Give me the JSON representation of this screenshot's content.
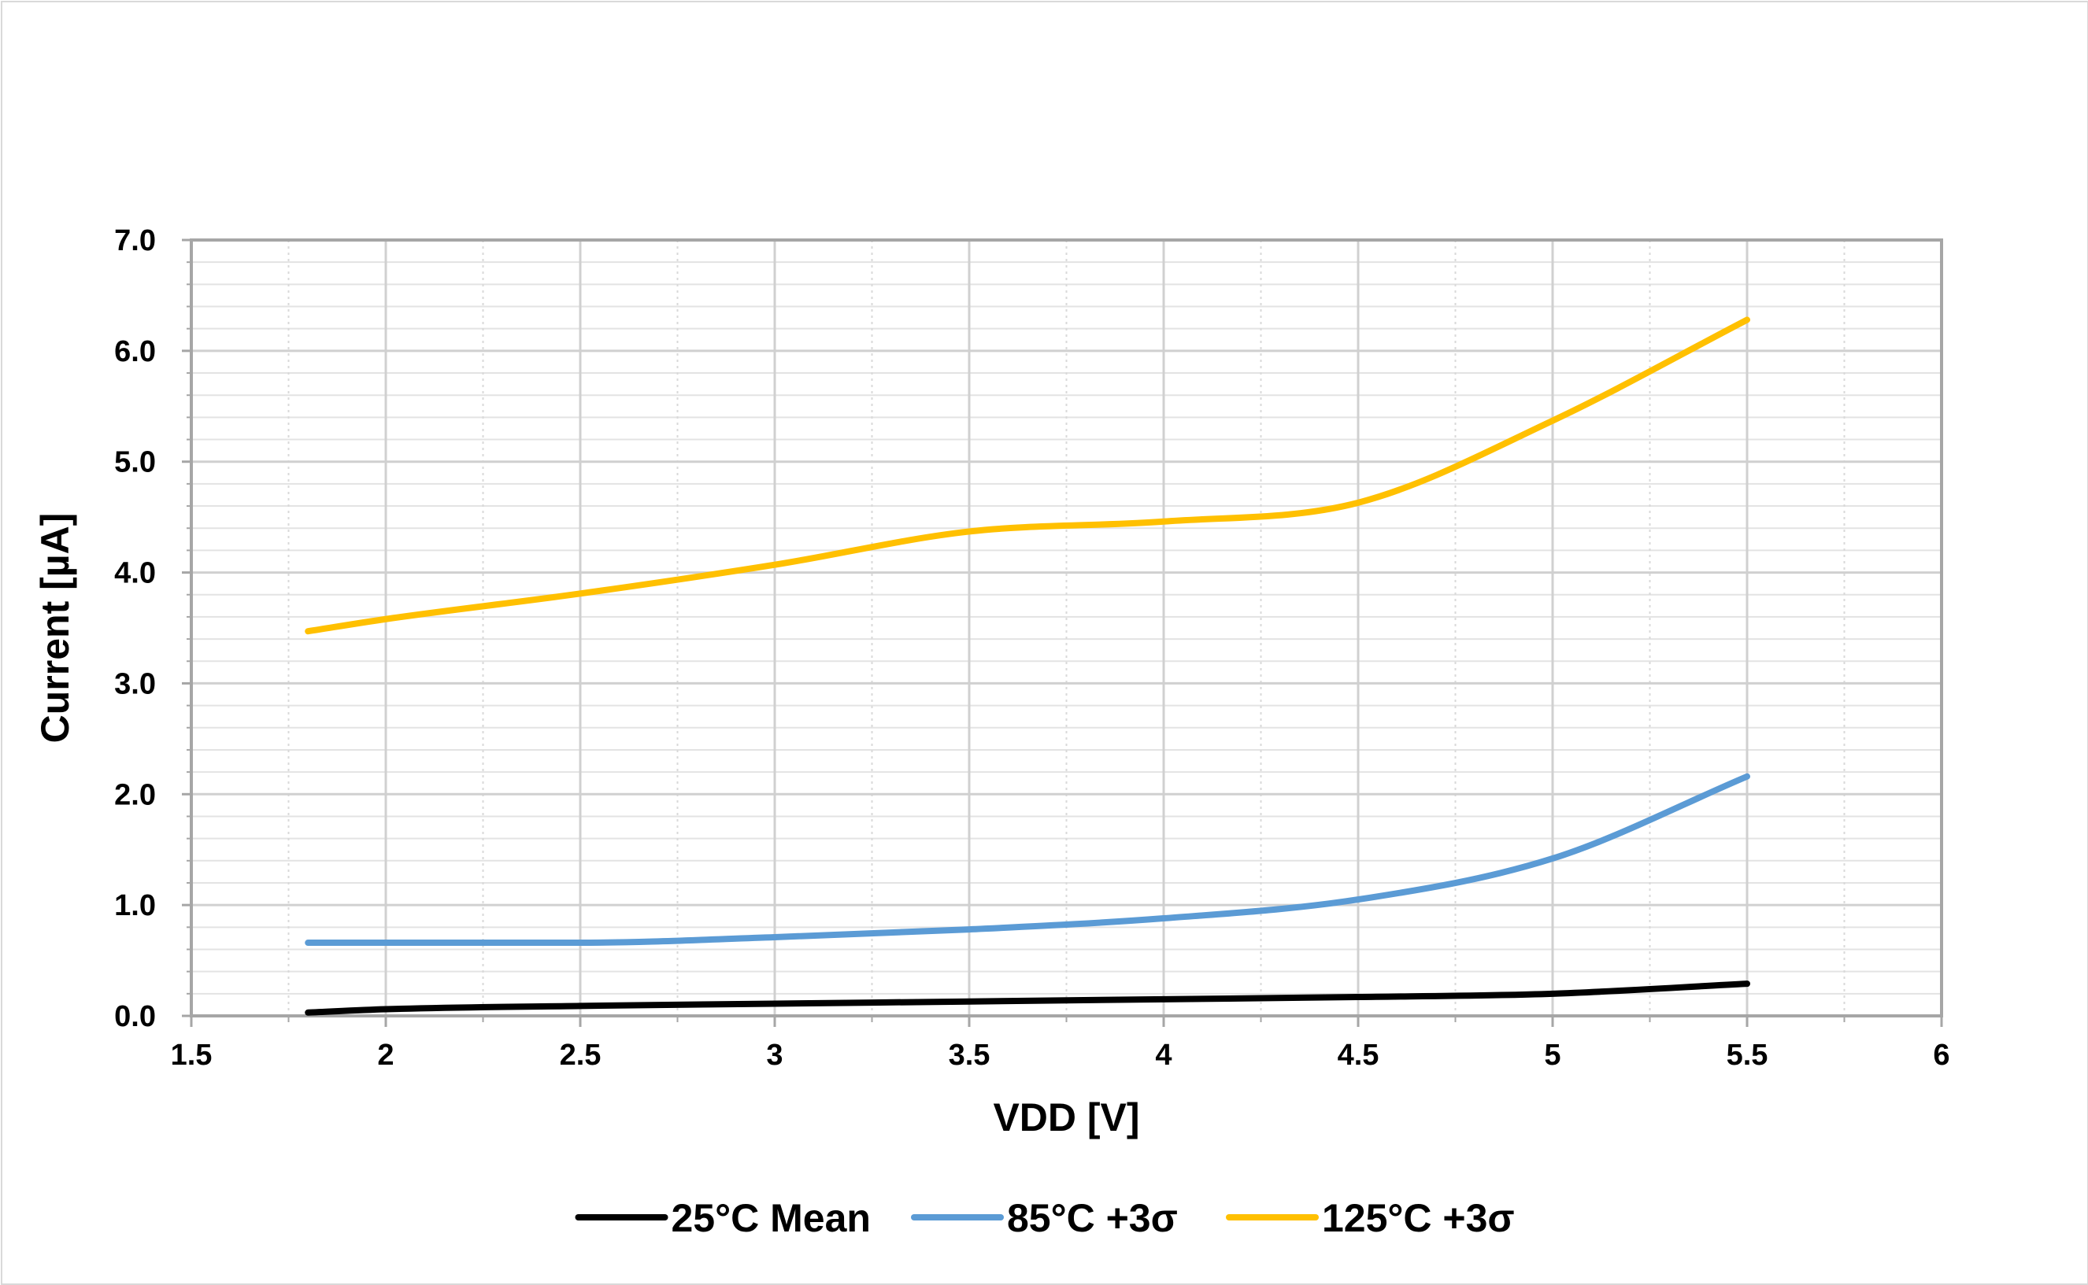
{
  "chart_data": {
    "type": "line",
    "title": "",
    "xlabel": "VDD [V]",
    "ylabel": "Current [µA]",
    "xlim": [
      1.5,
      6
    ],
    "ylim": [
      0,
      7
    ],
    "x_ticks": [
      "1.5",
      "2",
      "2.5",
      "3",
      "3.5",
      "4",
      "4.5",
      "5",
      "5.5",
      "6"
    ],
    "y_ticks": [
      "0.0",
      "1.0",
      "2.0",
      "3.0",
      "4.0",
      "5.0",
      "6.0",
      "7.0"
    ],
    "grid": true,
    "legend_position": "bottom",
    "series": [
      {
        "name": "25°C Mean",
        "color": "#000000",
        "x": [
          1.8,
          2.0,
          2.5,
          3.0,
          3.5,
          4.0,
          4.5,
          5.0,
          5.5
        ],
        "y": [
          0.03,
          0.06,
          0.09,
          0.11,
          0.13,
          0.15,
          0.17,
          0.2,
          0.29
        ]
      },
      {
        "name": "85°C +3σ",
        "color": "#5b9bd5",
        "x": [
          1.8,
          2.0,
          2.5,
          3.0,
          3.5,
          4.0,
          4.5,
          5.0,
          5.5
        ],
        "y": [
          0.66,
          0.66,
          0.66,
          0.71,
          0.78,
          0.88,
          1.05,
          1.42,
          2.16
        ]
      },
      {
        "name": "125°C +3σ",
        "color": "#ffc000",
        "x": [
          1.8,
          2.0,
          2.5,
          3.0,
          3.5,
          4.0,
          4.5,
          5.0,
          5.5
        ],
        "y": [
          3.47,
          3.58,
          3.81,
          4.07,
          4.37,
          4.46,
          4.63,
          5.37,
          6.28
        ]
      }
    ]
  }
}
